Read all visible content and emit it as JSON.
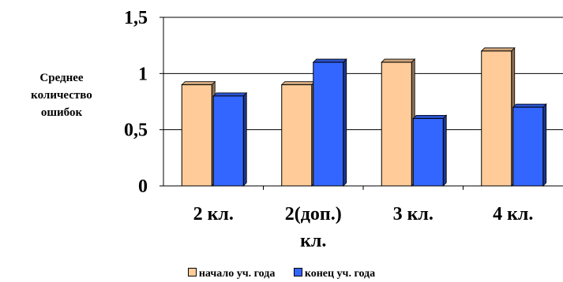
{
  "chart_data": {
    "type": "bar",
    "title": "",
    "xlabel": "",
    "ylabel_lines": [
      "Среднее",
      "количество",
      "ошибок"
    ],
    "categories": [
      [
        "2 кл."
      ],
      [
        "2(доп.)",
        "кл."
      ],
      [
        "3 кл."
      ],
      [
        "4 кл."
      ]
    ],
    "series": [
      {
        "name": "начало уч. года",
        "values": [
          0.9,
          0.9,
          1.1,
          1.2
        ],
        "color": "#FFCC99"
      },
      {
        "name": "конец уч. года",
        "values": [
          0.8,
          1.1,
          0.6,
          0.7
        ],
        "color": "#3366FF"
      }
    ],
    "ylim": [
      0,
      1.5
    ],
    "yticks": [
      "0",
      "0,5",
      "1",
      "1,5"
    ],
    "ytick_values": [
      0,
      0.5,
      1,
      1.5
    ],
    "grid": true,
    "legend_position": "bottom",
    "bar_3d": true
  }
}
